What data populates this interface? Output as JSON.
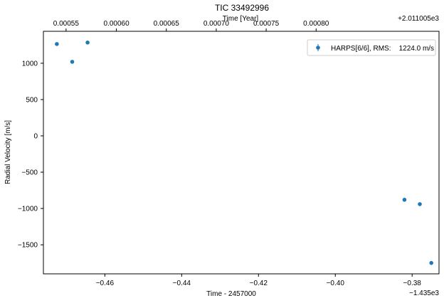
{
  "chart_data": {
    "type": "scatter",
    "title": "TIC 33492996",
    "xlabel": "Time - 2457000",
    "x_offset_label": "−1.435e3",
    "ylabel": "Radial Velocity [m/s]",
    "top_xlabel": "Time [Year]",
    "top_offset_label": "+2.011005e3",
    "xlim": [
      -0.476,
      -0.373
    ],
    "ylim": [
      -1900,
      1440
    ],
    "xticks": [
      -0.46,
      -0.44,
      -0.42,
      -0.4,
      -0.38
    ],
    "xtick_labels": [
      "−0.46",
      "−0.44",
      "−0.42",
      "−0.40",
      "−0.38"
    ],
    "yticks": [
      1000,
      500,
      0,
      -500,
      -1000,
      -1500
    ],
    "ytick_labels": [
      "1000",
      "500",
      "0",
      "−500",
      "−1000",
      "−1500"
    ],
    "top_ticks": [
      {
        "x": -0.4701,
        "label": "0.00055"
      },
      {
        "x": -0.457,
        "label": "0.00060"
      },
      {
        "x": -0.444,
        "label": "0.00065"
      },
      {
        "x": -0.431,
        "label": "0.00070"
      },
      {
        "x": -0.418,
        "label": "0.00075"
      },
      {
        "x": -0.405,
        "label": "0.00080"
      }
    ],
    "series": [
      {
        "name": "HARPS[6/6], RMS:    1224.0 m/s",
        "color": "#1f77b4",
        "x": [
          -0.4725,
          -0.4685,
          -0.4645,
          -0.382,
          -0.378,
          -0.375
        ],
        "y": [
          1265,
          1020,
          1285,
          -880,
          -940,
          -1750
        ]
      }
    ],
    "legend_position": "upper right",
    "grid": false
  }
}
